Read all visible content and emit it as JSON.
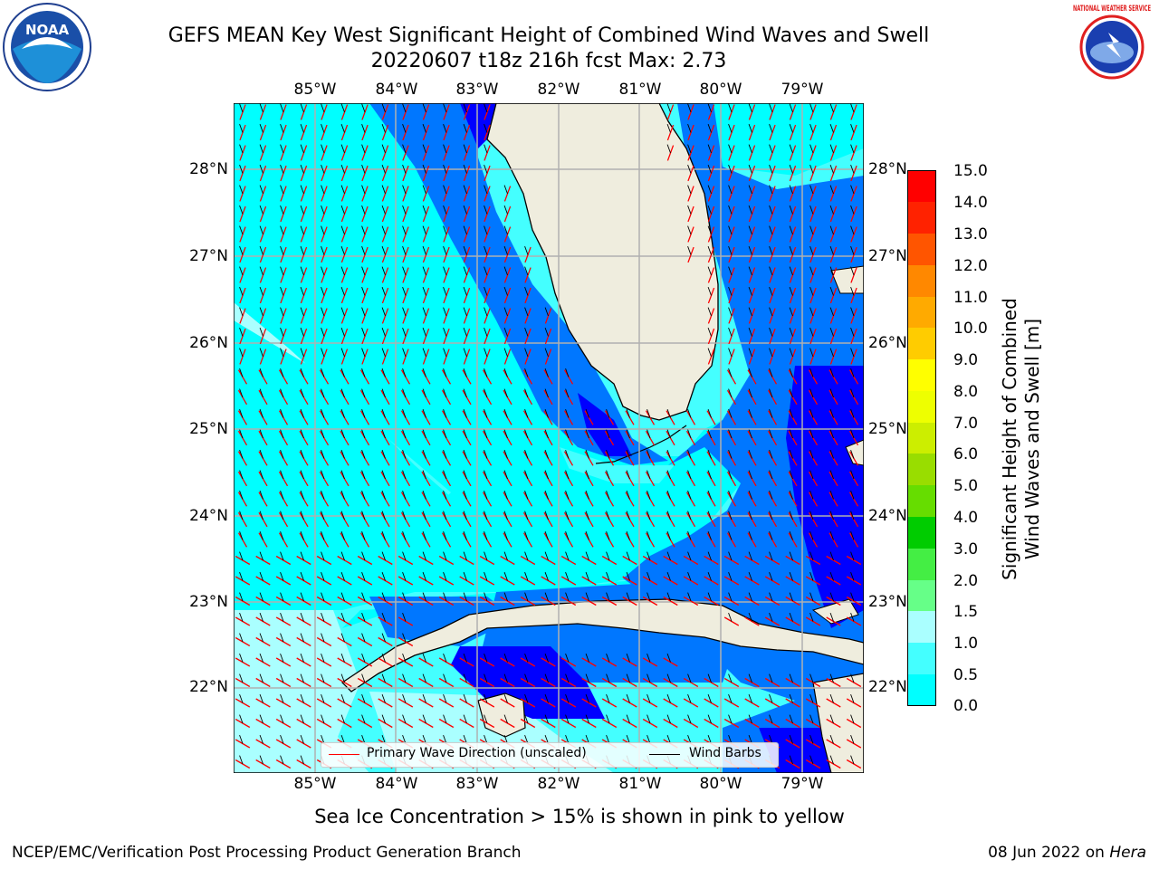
{
  "title_line1": "GEFS MEAN Key West Significant Height of Combined Wind Waves and Swell",
  "title_line2": "20220607 t18z 216h fcst   Max: 2.73",
  "map": {
    "lon_labels": [
      "85°W",
      "84°W",
      "83°W",
      "82°W",
      "81°W",
      "80°W",
      "79°W"
    ],
    "lat_labels": [
      "28°N",
      "27°N",
      "26°N",
      "25°N",
      "24°N",
      "23°N",
      "22°N"
    ],
    "lon_range": [
      -86.0,
      -78.25
    ],
    "lat_range": [
      21.0,
      28.75
    ],
    "colors": {
      "land": "#efedde",
      "coast": "#000000",
      "grid": "#b0b0b0",
      "wave_dir": "#ff0000",
      "wind_barb": "#000000"
    }
  },
  "colorbar": {
    "label": "Significant Height of Combined Wind Waves and Swell [m]",
    "label_line1": "Significant Height of Combined",
    "label_line2": "Wind Waves and Swell [m]",
    "ticks": [
      "15.0",
      "14.0",
      "13.0",
      "12.0",
      "11.0",
      "10.0",
      "9.0",
      "8.0",
      "7.0",
      "6.0",
      "5.0",
      "4.0",
      "3.0",
      "2.0",
      "1.5",
      "1.0",
      "0.5",
      "0.0"
    ],
    "colors_bottom_to_top": [
      "#0000ff",
      "#0077ff",
      "#00ffff",
      "#44ffff",
      "#aaffff",
      "#66ff88",
      "#44ee44",
      "#00cc00",
      "#66dd00",
      "#99dd00",
      "#ccee00",
      "#eeff00",
      "#ffff00",
      "#ffcc00",
      "#ffaa00",
      "#ff8800",
      "#ff5500",
      "#ff2200",
      "#ff0000"
    ]
  },
  "legend": {
    "primary_wave": "Primary Wave Direction (unscaled)",
    "wind_barbs": "Wind Barbs"
  },
  "sea_ice_note": "Sea Ice Concentration > 15% is shown in pink to yellow",
  "footer_left": "NCEP/EMC/Verification Post Processing Product Generation Branch",
  "footer_date": "08 Jun 2022 on ",
  "footer_machine": "Hera",
  "logos": {
    "left": "NOAA",
    "right": "NATIONAL WEATHER SERVICE"
  }
}
